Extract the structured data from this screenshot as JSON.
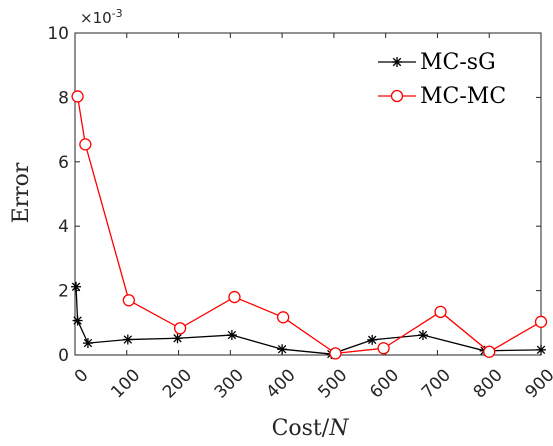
{
  "chart_data": {
    "type": "line",
    "xlabel": "Cost/",
    "xlabel_var": "N",
    "ylabel": "Error",
    "xlim": [
      0,
      900
    ],
    "ylim": [
      0,
      10
    ],
    "y_exponent": "×10",
    "y_exponent_power": "-3",
    "x_ticks": [
      {
        "value": 0,
        "label": "0"
      },
      {
        "value": 100,
        "label": "100"
      },
      {
        "value": 200,
        "label": "200"
      },
      {
        "value": 300,
        "label": "300"
      },
      {
        "value": 400,
        "label": "400"
      },
      {
        "value": 500,
        "label": "500"
      },
      {
        "value": 600,
        "label": "600"
      },
      {
        "value": 700,
        "label": "700"
      },
      {
        "value": 800,
        "label": "800"
      },
      {
        "value": 900,
        "label": "900"
      }
    ],
    "y_ticks": [
      {
        "value": 0,
        "label": "0"
      },
      {
        "value": 2,
        "label": "2"
      },
      {
        "value": 4,
        "label": "4"
      },
      {
        "value": 6,
        "label": "6"
      },
      {
        "value": 8,
        "label": "8"
      },
      {
        "value": 10,
        "label": "10"
      }
    ],
    "grid": false,
    "legend_position": "top-right",
    "series": [
      {
        "name": "MC-sG",
        "color": "#000000",
        "marker": "asterisk",
        "x": [
          2,
          5,
          25,
          102,
          198,
          303,
          400,
          495,
          574,
          672,
          791,
          900
        ],
        "y": [
          2.12,
          1.07,
          0.37,
          0.48,
          0.52,
          0.62,
          0.18,
          0.03,
          0.47,
          0.62,
          0.13,
          0.16
        ]
      },
      {
        "name": "MC-MC",
        "color": "#ff0000",
        "marker": "circle",
        "x": [
          5,
          20,
          104,
          203,
          308,
          402,
          503,
          596,
          706,
          800,
          900
        ],
        "y": [
          8.03,
          6.54,
          1.7,
          0.83,
          1.8,
          1.17,
          0.05,
          0.21,
          1.34,
          0.1,
          1.03
        ]
      }
    ]
  }
}
